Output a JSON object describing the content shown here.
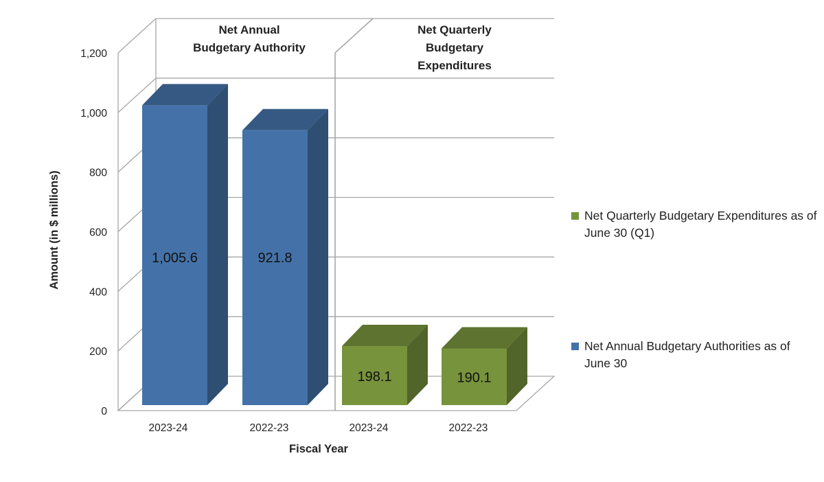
{
  "chart_data": {
    "type": "bar",
    "three_d": true,
    "xlabel": "Fiscal Year",
    "ylabel": "Amount (in $ millions)",
    "ylim": [
      0,
      1200
    ],
    "yticks": [
      0,
      200,
      400,
      600,
      800,
      1000,
      1200
    ],
    "ytick_labels": [
      "0",
      "200",
      "400",
      "600",
      "800",
      "1,000",
      "1,200"
    ],
    "grid": true,
    "legend_position": "right",
    "panels": [
      {
        "title": "Net Annual Budgetary Authority",
        "title_lines": [
          "Net Annual",
          "Budgetary Authority"
        ],
        "series": "Net Annual Budgetary Authorities as of June 30",
        "color": "#4472A8",
        "bars": [
          {
            "category": "2023-24",
            "value": 1005.6,
            "label": "1,005.6"
          },
          {
            "category": "2022-23",
            "value": 921.8,
            "label": "921.8"
          }
        ]
      },
      {
        "title": "Net Quarterly Budgetary Expenditures",
        "title_lines": [
          "Net Quarterly",
          "Budgetary",
          "Expenditures"
        ],
        "series": "Net Quarterly Budgetary Expenditures as of June 30 (Q1)",
        "color": "#77933C",
        "bars": [
          {
            "category": "2023-24",
            "value": 198.1,
            "label": "198.1"
          },
          {
            "category": "2022-23",
            "value": 190.1,
            "label": "190.1"
          }
        ]
      }
    ],
    "legend": [
      {
        "name": "Net Quarterly Budgetary Expenditures as of June 30 (Q1)",
        "color": "#77933C"
      },
      {
        "name": "Net Annual Budgetary Authorities as of June 30",
        "color": "#4472A8"
      }
    ]
  }
}
